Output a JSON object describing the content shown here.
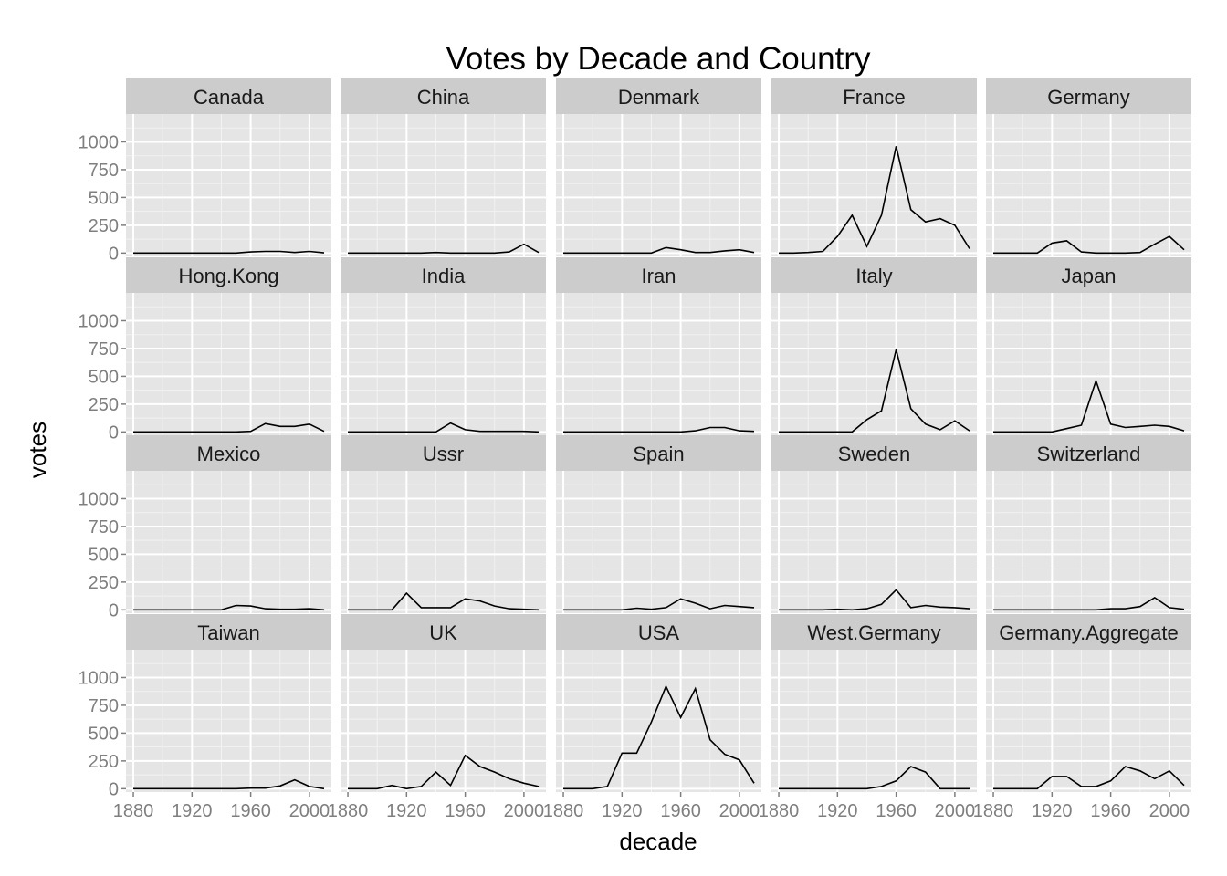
{
  "chart_data": {
    "type": "line",
    "title": "Votes by Decade and Country",
    "xlabel": "decade",
    "ylabel": "votes",
    "facet_layout": "wrap",
    "facet_columns": 5,
    "xlim": [
      1875,
      2015
    ],
    "ylim": [
      -30,
      1250
    ],
    "x_ticks": [
      1880,
      1920,
      1960,
      2000
    ],
    "y_ticks": [
      0,
      250,
      500,
      750,
      1000
    ],
    "grid": true,
    "legend": "none",
    "colors": {
      "panel_background": "#e5e5e5",
      "grid_major": "#ffffff",
      "grid_minor": "#f2f2f2",
      "strip_background": "#cccccc",
      "line": "#000000",
      "tick_label": "#7f7f7f"
    },
    "x": [
      1880,
      1890,
      1900,
      1910,
      1920,
      1930,
      1940,
      1950,
      1960,
      1970,
      1980,
      1990,
      2000,
      2010
    ],
    "series": [
      {
        "name": "Canada",
        "values": [
          0,
          0,
          0,
          0,
          0,
          0,
          0,
          0,
          10,
          15,
          15,
          5,
          15,
          2
        ]
      },
      {
        "name": "China",
        "values": [
          0,
          0,
          0,
          0,
          0,
          0,
          5,
          0,
          0,
          0,
          0,
          10,
          80,
          5
        ]
      },
      {
        "name": "Denmark",
        "values": [
          0,
          0,
          0,
          0,
          0,
          0,
          0,
          50,
          30,
          5,
          5,
          20,
          30,
          5
        ]
      },
      {
        "name": "France",
        "values": [
          0,
          0,
          5,
          15,
          150,
          340,
          60,
          340,
          960,
          390,
          280,
          310,
          250,
          40
        ]
      },
      {
        "name": "Germany",
        "values": [
          0,
          0,
          0,
          0,
          90,
          110,
          10,
          0,
          0,
          0,
          5,
          80,
          150,
          30
        ]
      },
      {
        "name": "Hong.Kong",
        "values": [
          0,
          0,
          0,
          0,
          0,
          0,
          0,
          0,
          5,
          75,
          50,
          50,
          70,
          5
        ]
      },
      {
        "name": "India",
        "values": [
          0,
          0,
          0,
          0,
          0,
          0,
          0,
          80,
          20,
          5,
          5,
          5,
          5,
          0
        ]
      },
      {
        "name": "Iran",
        "values": [
          0,
          0,
          0,
          0,
          0,
          0,
          0,
          0,
          0,
          10,
          40,
          40,
          10,
          5
        ]
      },
      {
        "name": "Italy",
        "values": [
          0,
          0,
          0,
          0,
          0,
          0,
          110,
          190,
          740,
          210,
          70,
          20,
          100,
          10
        ]
      },
      {
        "name": "Japan",
        "values": [
          0,
          0,
          0,
          0,
          0,
          30,
          60,
          460,
          70,
          40,
          50,
          60,
          50,
          10
        ]
      },
      {
        "name": "Mexico",
        "values": [
          0,
          0,
          0,
          0,
          0,
          0,
          0,
          40,
          35,
          10,
          5,
          5,
          10,
          0
        ]
      },
      {
        "name": "Ussr",
        "values": [
          0,
          0,
          0,
          0,
          150,
          20,
          20,
          20,
          100,
          80,
          35,
          10,
          5,
          0
        ]
      },
      {
        "name": "Spain",
        "values": [
          0,
          0,
          0,
          0,
          0,
          15,
          5,
          20,
          100,
          60,
          10,
          40,
          30,
          20
        ]
      },
      {
        "name": "Sweden",
        "values": [
          0,
          0,
          0,
          0,
          5,
          0,
          10,
          50,
          180,
          20,
          40,
          25,
          20,
          10
        ]
      },
      {
        "name": "Switzerland",
        "values": [
          0,
          0,
          0,
          0,
          0,
          0,
          0,
          0,
          10,
          10,
          30,
          110,
          20,
          5
        ]
      },
      {
        "name": "Taiwan",
        "values": [
          0,
          0,
          0,
          0,
          0,
          0,
          0,
          0,
          5,
          5,
          25,
          80,
          20,
          0
        ]
      },
      {
        "name": "UK",
        "values": [
          0,
          0,
          0,
          30,
          0,
          20,
          150,
          30,
          300,
          200,
          150,
          90,
          50,
          20
        ]
      },
      {
        "name": "USA",
        "values": [
          0,
          0,
          0,
          20,
          320,
          320,
          600,
          920,
          640,
          900,
          440,
          310,
          260,
          50
        ]
      },
      {
        "name": "West.Germany",
        "values": [
          0,
          0,
          0,
          0,
          0,
          0,
          0,
          20,
          70,
          200,
          150,
          0,
          0,
          0
        ]
      },
      {
        "name": "Germany.Aggregate",
        "values": [
          0,
          0,
          0,
          0,
          110,
          110,
          20,
          20,
          70,
          200,
          160,
          90,
          160,
          30
        ]
      }
    ]
  }
}
